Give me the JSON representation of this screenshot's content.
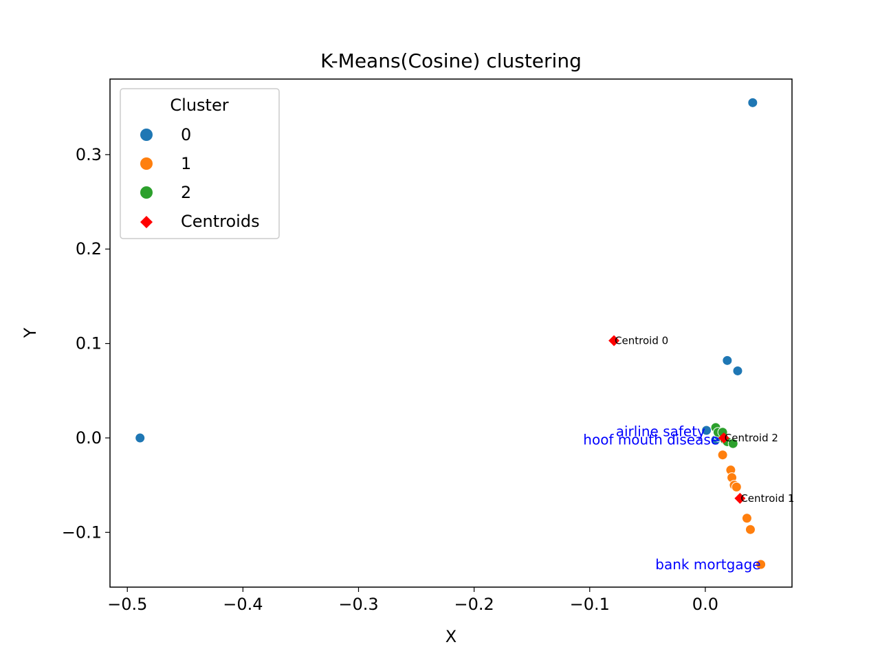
{
  "chart_data": {
    "type": "scatter",
    "title": "K-Means(Cosine) clustering",
    "xlabel": "X",
    "ylabel": "Y",
    "xlim": [
      -0.515,
      0.075
    ],
    "ylim": [
      -0.158,
      0.38
    ],
    "xticks": [
      -0.5,
      -0.4,
      -0.3,
      -0.2,
      -0.1,
      0.0
    ],
    "xtick_labels": [
      "−0.5",
      "−0.4",
      "−0.3",
      "−0.2",
      "−0.1",
      "0.0"
    ],
    "yticks": [
      -0.1,
      0.0,
      0.1,
      0.2,
      0.3
    ],
    "ytick_labels": [
      "−0.1",
      "0.0",
      "0.1",
      "0.2",
      "0.3"
    ],
    "grid": false,
    "legend": {
      "title": "Cluster",
      "placement": "top-left",
      "entries": [
        {
          "label": "0",
          "color": "#1f77b4",
          "marker": "circle"
        },
        {
          "label": "1",
          "color": "#ff7f0e",
          "marker": "circle"
        },
        {
          "label": "2",
          "color": "#2ca02c",
          "marker": "circle"
        },
        {
          "label": "Centroids",
          "color": "#ff0000",
          "marker": "diamond"
        }
      ]
    },
    "series": [
      {
        "name": "0",
        "color": "#1f77b4",
        "points": [
          {
            "x": 0.041,
            "y": 0.355
          },
          {
            "x": 0.019,
            "y": 0.082
          },
          {
            "x": 0.028,
            "y": 0.071
          },
          {
            "x": -0.489,
            "y": 0.0
          },
          {
            "x": 0.001,
            "y": 0.008
          },
          {
            "x": 0.009,
            "y": -0.002
          },
          {
            "x": 0.012,
            "y": 0.001
          }
        ]
      },
      {
        "name": "1",
        "color": "#ff7f0e",
        "points": [
          {
            "x": 0.015,
            "y": -0.018
          },
          {
            "x": 0.022,
            "y": -0.034
          },
          {
            "x": 0.023,
            "y": -0.042
          },
          {
            "x": 0.025,
            "y": -0.05
          },
          {
            "x": 0.027,
            "y": -0.052
          },
          {
            "x": 0.036,
            "y": -0.085
          },
          {
            "x": 0.039,
            "y": -0.097
          },
          {
            "x": 0.048,
            "y": -0.134
          }
        ]
      },
      {
        "name": "2",
        "color": "#2ca02c",
        "points": [
          {
            "x": 0.009,
            "y": 0.011
          },
          {
            "x": 0.011,
            "y": 0.006
          },
          {
            "x": 0.015,
            "y": 0.006
          },
          {
            "x": 0.017,
            "y": -0.002
          },
          {
            "x": 0.019,
            "y": -0.004
          },
          {
            "x": 0.024,
            "y": -0.006
          }
        ]
      }
    ],
    "centroids": [
      {
        "label": "Centroid 0",
        "x": -0.079,
        "y": 0.103
      },
      {
        "label": "Centroid 1",
        "x": 0.03,
        "y": -0.064
      },
      {
        "label": "Centroid 2",
        "x": 0.016,
        "y": 0.0
      }
    ],
    "annotations": [
      {
        "text": "airline safety",
        "x": 0.0,
        "y": 0.007
      },
      {
        "text": "hoof mouth disease",
        "x": 0.012,
        "y": -0.002
      },
      {
        "text": "bank mortgage",
        "x": 0.048,
        "y": -0.134
      }
    ]
  }
}
